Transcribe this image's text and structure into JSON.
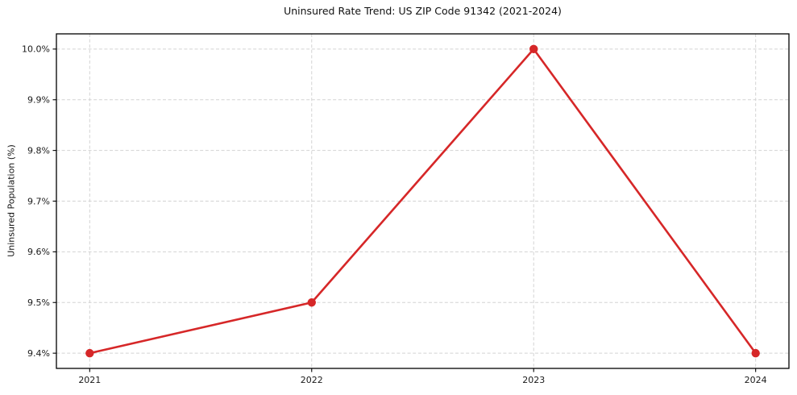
{
  "figure": {
    "background": "#ffffff"
  },
  "chart_data": {
    "type": "line",
    "title": "Uninsured Rate Trend: US ZIP Code 91342 (2021-2024)",
    "xlabel": "",
    "ylabel": "Uninsured Population (%)",
    "categories": [
      "2021",
      "2022",
      "2023",
      "2024"
    ],
    "x": [
      2021,
      2022,
      2023,
      2024
    ],
    "values": [
      9.4,
      9.5,
      10.0,
      9.4
    ],
    "unit": "%",
    "xlim": [
      2020.85,
      2024.15
    ],
    "ylim": [
      9.37,
      10.03
    ],
    "x_ticks": [
      {
        "value": 2021,
        "label": "2021"
      },
      {
        "value": 2022,
        "label": "2022"
      },
      {
        "value": 2023,
        "label": "2023"
      },
      {
        "value": 2024,
        "label": "2024"
      }
    ],
    "y_ticks": [
      {
        "value": 9.4,
        "label": "9.4%"
      },
      {
        "value": 9.5,
        "label": "9.5%"
      },
      {
        "value": 9.6,
        "label": "9.6%"
      },
      {
        "value": 9.7,
        "label": "9.7%"
      },
      {
        "value": 9.8,
        "label": "9.8%"
      },
      {
        "value": 9.9,
        "label": "9.9%"
      },
      {
        "value": 10.0,
        "label": "10.0%"
      }
    ],
    "line_color": "#d62728",
    "marker": "circle",
    "marker_color": "#d62728",
    "grid": true,
    "grid_style": "dashed",
    "grid_color": "#d3d3d3",
    "axis_color": "#000000",
    "legend_position": "none"
  }
}
